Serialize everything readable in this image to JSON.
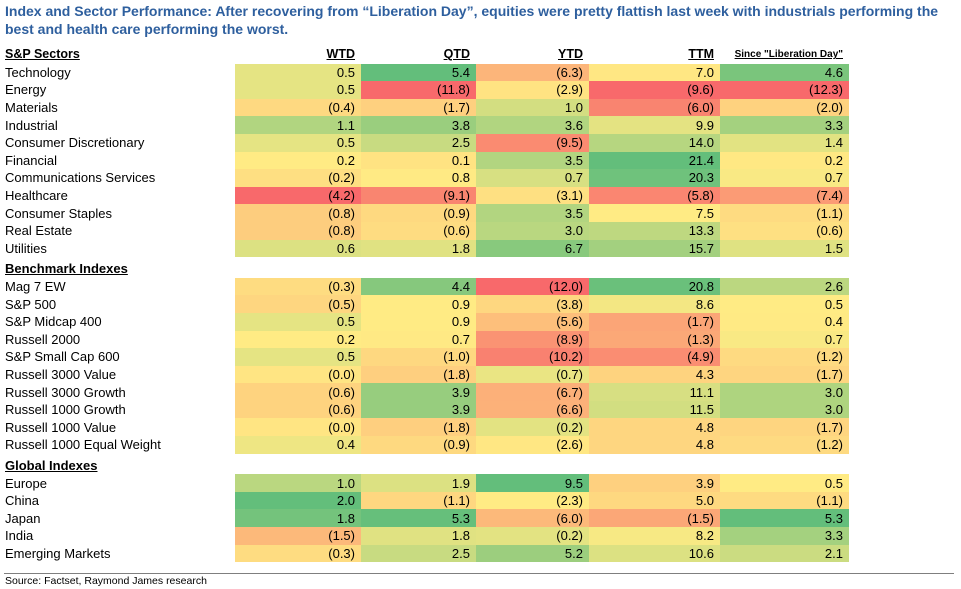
{
  "title": "Index and Sector Performance: After recovering from “Liberation Day”, equities were pretty flattish last week with industrials performing the best and health care performing the worst.",
  "source": "Source: Factset, Raymond James research",
  "columns": [
    "WTD",
    "QTD",
    "YTD",
    "TTM",
    "Since \"Liberation Day\""
  ],
  "colors": {
    "low": "#f8696b",
    "mid": "#ffeb84",
    "high": "#63be7b",
    "title": "#2e5f9e"
  },
  "chart_data": {
    "type": "table",
    "title": "Index and Sector Performance: After recovering from “Liberation Day”, equities were pretty flattish last week with industrials performing the best and health care performing the worst.",
    "columns": [
      "WTD",
      "QTD",
      "YTD",
      "TTM",
      "Since \"Liberation Day\""
    ],
    "groups": [
      {
        "name": "S&P Sectors",
        "rows": [
          {
            "label": "Technology",
            "values": [
              0.5,
              5.4,
              -6.3,
              7.0,
              4.6
            ],
            "display": [
              "0.5",
              "5.4",
              "(6.3)",
              "7.0",
              "4.6"
            ]
          },
          {
            "label": "Energy",
            "values": [
              0.5,
              -11.8,
              -2.9,
              -9.6,
              -12.3
            ],
            "display": [
              "0.5",
              "(11.8)",
              "(2.9)",
              "(9.6)",
              "(12.3)"
            ]
          },
          {
            "label": "Materials",
            "values": [
              -0.4,
              -1.7,
              1.0,
              -6.0,
              -2.0
            ],
            "display": [
              "(0.4)",
              "(1.7)",
              "1.0",
              "(6.0)",
              "(2.0)"
            ]
          },
          {
            "label": "Industrial",
            "values": [
              1.1,
              3.8,
              3.6,
              9.9,
              3.3
            ],
            "display": [
              "1.1",
              "3.8",
              "3.6",
              "9.9",
              "3.3"
            ]
          },
          {
            "label": "Consumer Discretionary",
            "values": [
              0.5,
              2.5,
              -9.5,
              14.0,
              1.4
            ],
            "display": [
              "0.5",
              "2.5",
              "(9.5)",
              "14.0",
              "1.4"
            ]
          },
          {
            "label": "Financial",
            "values": [
              0.2,
              0.1,
              3.5,
              21.4,
              0.2
            ],
            "display": [
              "0.2",
              "0.1",
              "3.5",
              "21.4",
              "0.2"
            ]
          },
          {
            "label": "Communications Services",
            "values": [
              -0.2,
              0.8,
              0.7,
              20.3,
              0.7
            ],
            "display": [
              "(0.2)",
              "0.8",
              "0.7",
              "20.3",
              "0.7"
            ]
          },
          {
            "label": "Healthcare",
            "values": [
              -4.2,
              -9.1,
              -3.1,
              -5.8,
              -7.4
            ],
            "display": [
              "(4.2)",
              "(9.1)",
              "(3.1)",
              "(5.8)",
              "(7.4)"
            ]
          },
          {
            "label": "Consumer Staples",
            "values": [
              -0.8,
              -0.9,
              3.5,
              7.5,
              -1.1
            ],
            "display": [
              "(0.8)",
              "(0.9)",
              "3.5",
              "7.5",
              "(1.1)"
            ]
          },
          {
            "label": "Real Estate",
            "values": [
              -0.8,
              -0.6,
              3.0,
              13.3,
              -0.6
            ],
            "display": [
              "(0.8)",
              "(0.6)",
              "3.0",
              "13.3",
              "(0.6)"
            ]
          },
          {
            "label": "Utilities",
            "values": [
              0.6,
              1.8,
              6.7,
              15.7,
              1.5
            ],
            "display": [
              "0.6",
              "1.8",
              "6.7",
              "15.7",
              "1.5"
            ]
          }
        ]
      },
      {
        "name": "Benchmark Indexes",
        "rows": [
          {
            "label": "Mag 7 EW",
            "values": [
              -0.3,
              4.4,
              -12.0,
              20.8,
              2.6
            ],
            "display": [
              "(0.3)",
              "4.4",
              "(12.0)",
              "20.8",
              "2.6"
            ]
          },
          {
            "label": "S&P 500",
            "values": [
              -0.5,
              0.9,
              -3.8,
              8.6,
              0.5
            ],
            "display": [
              "(0.5)",
              "0.9",
              "(3.8)",
              "8.6",
              "0.5"
            ]
          },
          {
            "label": "S&P Midcap 400",
            "values": [
              0.5,
              0.9,
              -5.6,
              -1.7,
              0.4
            ],
            "display": [
              "0.5",
              "0.9",
              "(5.6)",
              "(1.7)",
              "0.4"
            ]
          },
          {
            "label": "Russell 2000",
            "values": [
              0.2,
              0.7,
              -8.9,
              -1.3,
              0.7
            ],
            "display": [
              "0.2",
              "0.7",
              "(8.9)",
              "(1.3)",
              "0.7"
            ]
          },
          {
            "label": "S&P Small Cap 600",
            "values": [
              0.5,
              -1.0,
              -10.2,
              -4.9,
              -1.2
            ],
            "display": [
              "0.5",
              "(1.0)",
              "(10.2)",
              "(4.9)",
              "(1.2)"
            ]
          },
          {
            "label": "Russell 3000 Value",
            "values": [
              -0.0,
              -1.8,
              -0.7,
              4.3,
              -1.7
            ],
            "display": [
              "(0.0)",
              "(1.8)",
              "(0.7)",
              "4.3",
              "(1.7)"
            ]
          },
          {
            "label": "Russell 3000 Growth",
            "values": [
              -0.6,
              3.9,
              -6.7,
              11.1,
              3.0
            ],
            "display": [
              "(0.6)",
              "3.9",
              "(6.7)",
              "11.1",
              "3.0"
            ]
          },
          {
            "label": "Russell 1000 Growth",
            "values": [
              -0.6,
              3.9,
              -6.6,
              11.5,
              3.0
            ],
            "display": [
              "(0.6)",
              "3.9",
              "(6.6)",
              "11.5",
              "3.0"
            ]
          },
          {
            "label": "Russell 1000 Value",
            "values": [
              -0.0,
              -1.8,
              -0.2,
              4.8,
              -1.7
            ],
            "display": [
              "(0.0)",
              "(1.8)",
              "(0.2)",
              "4.8",
              "(1.7)"
            ]
          },
          {
            "label": "Russell 1000 Equal Weight",
            "values": [
              0.4,
              -0.9,
              -2.6,
              4.8,
              -1.2
            ],
            "display": [
              "0.4",
              "(0.9)",
              "(2.6)",
              "4.8",
              "(1.2)"
            ]
          }
        ]
      },
      {
        "name": "Global Indexes",
        "rows": [
          {
            "label": "Europe",
            "values": [
              1.0,
              1.9,
              9.5,
              3.9,
              0.5
            ],
            "display": [
              "1.0",
              "1.9",
              "9.5",
              "3.9",
              "0.5"
            ]
          },
          {
            "label": "China",
            "values": [
              2.0,
              -1.1,
              -2.3,
              5.0,
              -1.1
            ],
            "display": [
              "2.0",
              "(1.1)",
              "(2.3)",
              "5.0",
              "(1.1)"
            ]
          },
          {
            "label": "Japan",
            "values": [
              1.8,
              5.3,
              -6.0,
              -1.5,
              5.3
            ],
            "display": [
              "1.8",
              "5.3",
              "(6.0)",
              "(1.5)",
              "5.3"
            ]
          },
          {
            "label": "India",
            "values": [
              -1.5,
              1.8,
              -0.2,
              8.2,
              3.3
            ],
            "display": [
              "(1.5)",
              "1.8",
              "(0.2)",
              "8.2",
              "3.3"
            ]
          },
          {
            "label": "Emerging Markets",
            "values": [
              -0.3,
              2.5,
              5.2,
              10.6,
              2.1
            ],
            "display": [
              "(0.3)",
              "2.5",
              "5.2",
              "10.6",
              "2.1"
            ]
          }
        ]
      }
    ]
  }
}
